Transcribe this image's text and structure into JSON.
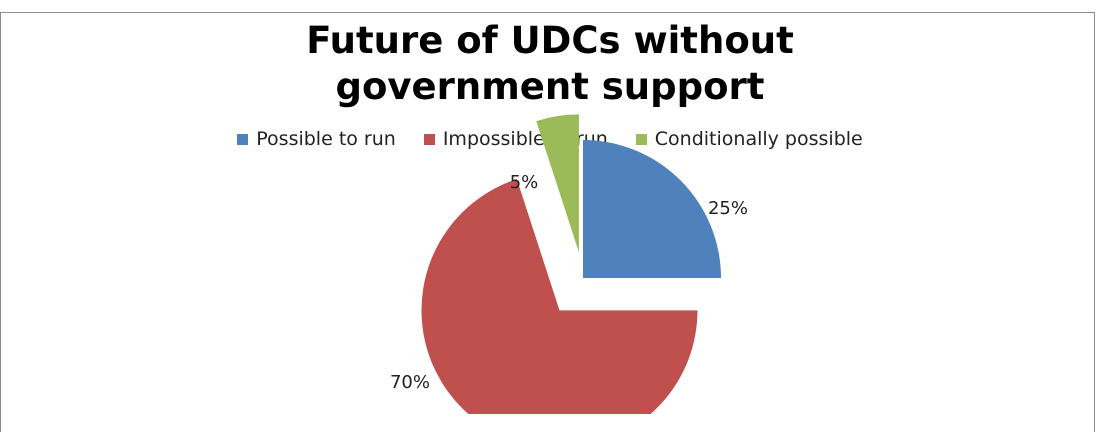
{
  "chart_data": {
    "type": "pie",
    "title_lines": [
      "Future of UDCs without",
      "government support"
    ],
    "categories": [
      "Possible to run",
      "Impossible to run",
      "Conditionally possible"
    ],
    "values": [
      25,
      70,
      5
    ],
    "data_labels": [
      "25%",
      "70%",
      "5%"
    ],
    "colors": [
      "#4f81bd",
      "#c0504d",
      "#9bbb59"
    ],
    "exploded": true,
    "legend_position": "top"
  }
}
